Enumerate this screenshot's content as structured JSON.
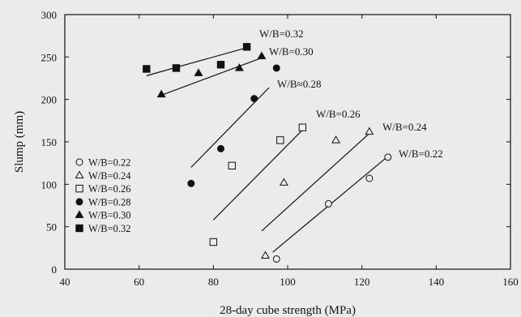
{
  "chart_data": {
    "type": "scatter",
    "title": "",
    "xlabel": "28-day cube strength (MPa)",
    "ylabel": "Slump (mm)",
    "xlim": [
      40,
      160
    ],
    "ylim": [
      0,
      300
    ],
    "xticks": [
      40,
      60,
      80,
      100,
      120,
      140,
      160
    ],
    "yticks": [
      0,
      50,
      100,
      150,
      200,
      250,
      300
    ],
    "grid": false,
    "legend_position": "bottom-left",
    "series": [
      {
        "name": "W/B=0.22",
        "marker": "circle-open",
        "points": [
          [
            97,
            12
          ],
          [
            111,
            77
          ],
          [
            122,
            107
          ],
          [
            127,
            132
          ]
        ],
        "fit_label": "W/B=0.22",
        "fit": [
          [
            96,
            20
          ],
          [
            127,
            133
          ]
        ]
      },
      {
        "name": "W/B=0.24",
        "marker": "triangle-open",
        "points": [
          [
            94,
            16
          ],
          [
            99,
            102
          ],
          [
            113,
            152
          ],
          [
            122,
            162
          ]
        ],
        "fit_label": "W/B=0.24",
        "fit": [
          [
            93,
            45
          ],
          [
            122,
            160
          ]
        ]
      },
      {
        "name": "W/B=0.26",
        "marker": "square-open",
        "points": [
          [
            80,
            32
          ],
          [
            85,
            122
          ],
          [
            98,
            152
          ],
          [
            104,
            167
          ]
        ],
        "fit_label": "W/B=0.26",
        "fit": [
          [
            80,
            58
          ],
          [
            104,
            164
          ]
        ]
      },
      {
        "name": "W/B=0.28",
        "marker": "circle-filled",
        "points": [
          [
            74,
            101
          ],
          [
            82,
            142
          ],
          [
            91,
            201
          ],
          [
            97,
            237
          ]
        ],
        "fit_label": "W/B≈0.28",
        "fit": [
          [
            74,
            120
          ],
          [
            95,
            214
          ]
        ]
      },
      {
        "name": "W/B=0.30",
        "marker": "triangle-filled",
        "points": [
          [
            66,
            206
          ],
          [
            76,
            231
          ],
          [
            87,
            237
          ],
          [
            93,
            251
          ]
        ],
        "fit_label": "W/B=0.30",
        "fit": [
          [
            66,
            205
          ],
          [
            93,
            249
          ]
        ]
      },
      {
        "name": "W/B=0.32",
        "marker": "square-filled",
        "points": [
          [
            62,
            236
          ],
          [
            70,
            237
          ],
          [
            82,
            241
          ],
          [
            89,
            262
          ]
        ],
        "fit_label": "W/B=0.32",
        "fit": [
          [
            62,
            228
          ],
          [
            89,
            261
          ]
        ]
      }
    ]
  },
  "style": {
    "ink": "#111111",
    "background": "#ebebeb"
  }
}
